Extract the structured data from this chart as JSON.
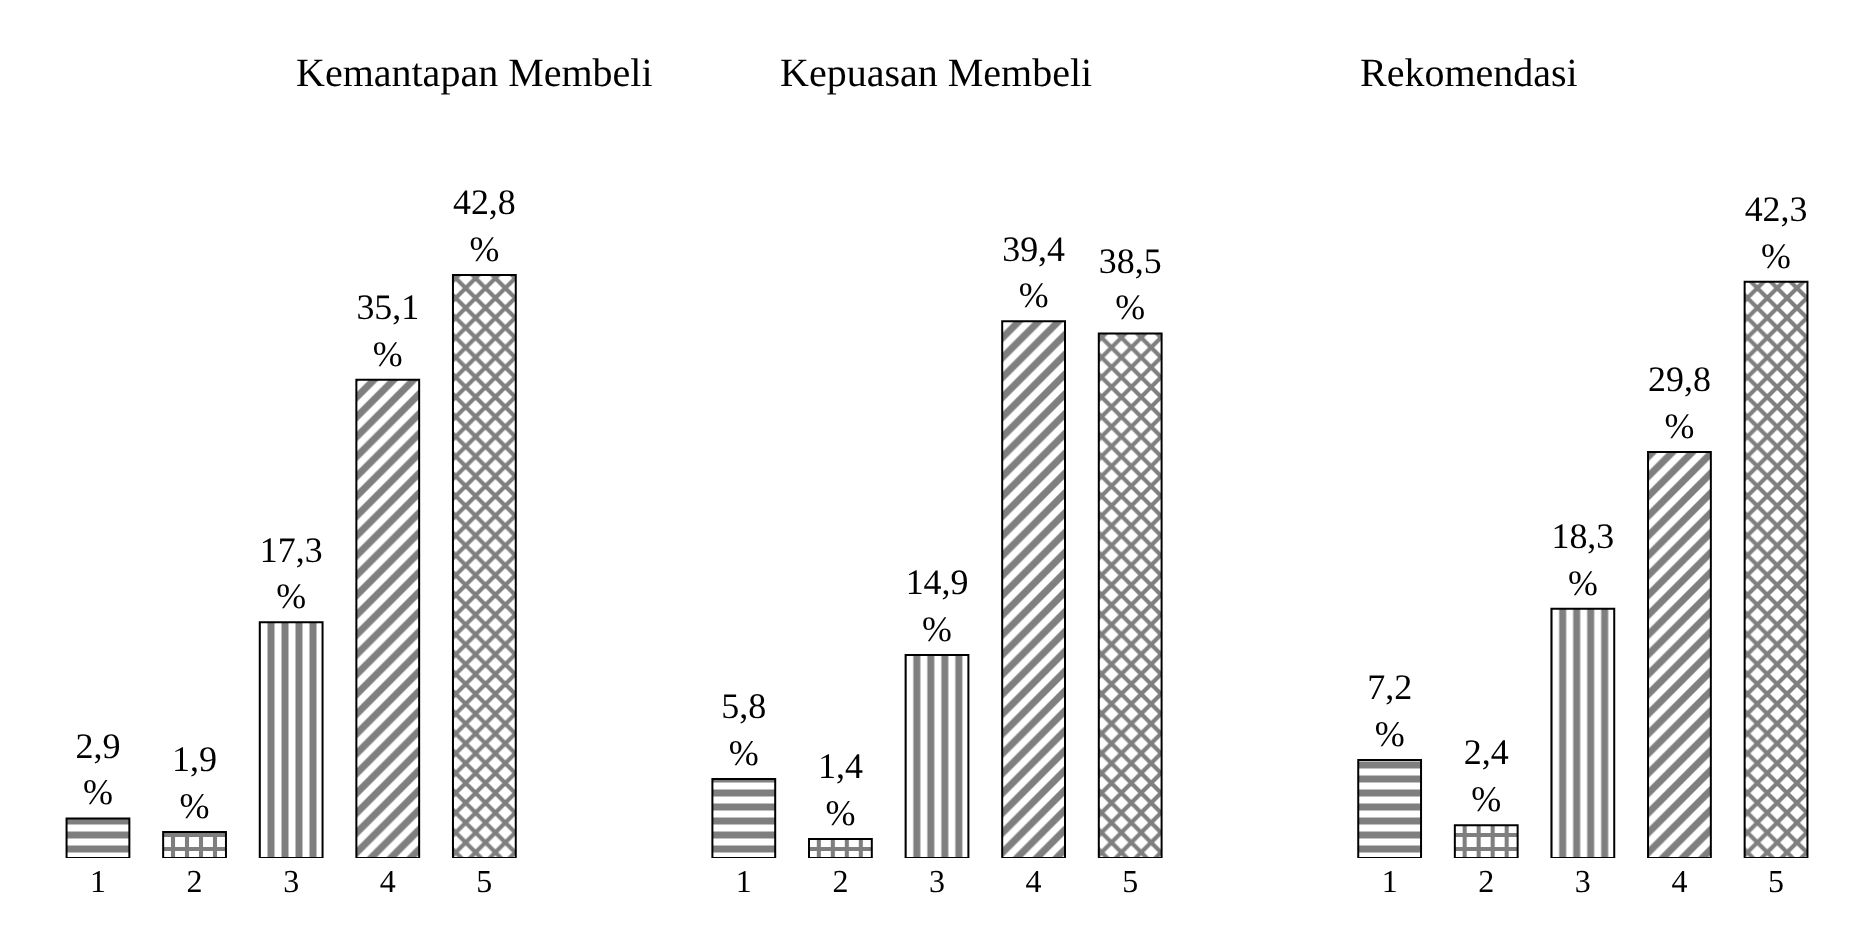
{
  "chart_data": [
    {
      "type": "bar",
      "title": "Kemantapan Membeli",
      "categories": [
        "1",
        "2",
        "3",
        "4",
        "5"
      ],
      "values": [
        2.9,
        1.9,
        17.3,
        35.1,
        42.8
      ],
      "value_labels": [
        "2,9%",
        "1,9%",
        "17,3%",
        "35,1%",
        "42,8%"
      ],
      "colors": [
        "#000000",
        "#000000",
        "#000000",
        "#000000",
        "#000000"
      ]
    },
    {
      "type": "bar",
      "title": "Kepuasan Membeli",
      "categories": [
        "1",
        "2",
        "3",
        "4",
        "5"
      ],
      "values": [
        5.8,
        1.4,
        14.9,
        39.4,
        38.5
      ],
      "value_labels": [
        "5,8%",
        "1,4%",
        "14,9%",
        "39,4%",
        "38,5%"
      ],
      "colors": [
        "#000000",
        "#000000",
        "#000000",
        "#000000",
        "#000000"
      ]
    },
    {
      "type": "bar",
      "title": "Rekomendasi",
      "categories": [
        "1",
        "2",
        "3",
        "4",
        "5"
      ],
      "values": [
        7.2,
        2.4,
        18.3,
        29.8,
        42.3
      ],
      "value_labels": [
        "7,2%",
        "2,4%",
        "18,3%",
        "29,8%",
        "42,3%"
      ],
      "colors": [
        "#000000",
        "#000000",
        "#000000",
        "#000000",
        "#000000"
      ]
    }
  ]
}
